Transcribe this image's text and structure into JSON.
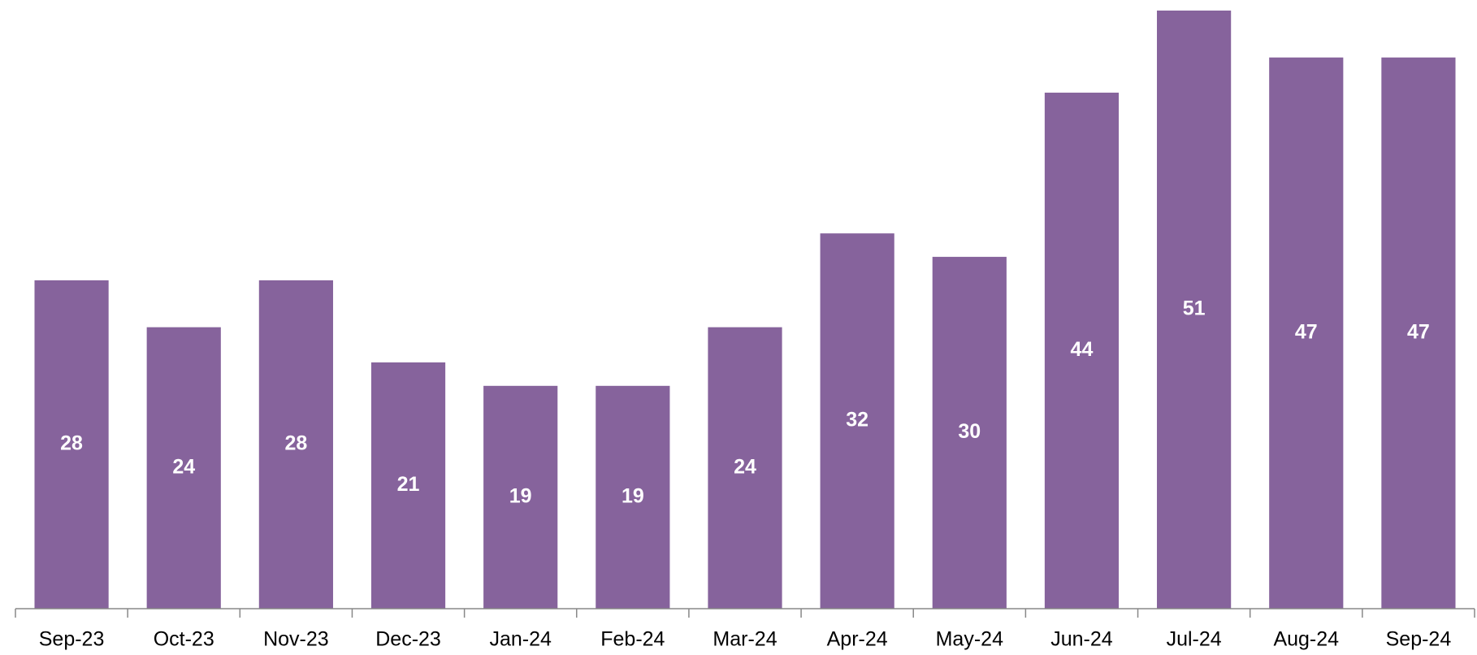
{
  "chart_data": {
    "type": "bar",
    "categories": [
      "Sep-23",
      "Oct-23",
      "Nov-23",
      "Dec-23",
      "Jan-24",
      "Feb-24",
      "Mar-24",
      "Apr-24",
      "May-24",
      "Jun-24",
      "Jul-24",
      "Aug-24",
      "Sep-24"
    ],
    "values": [
      28,
      24,
      28,
      21,
      19,
      19,
      24,
      32,
      30,
      44,
      51,
      47,
      47
    ],
    "color": "#86639c"
  }
}
